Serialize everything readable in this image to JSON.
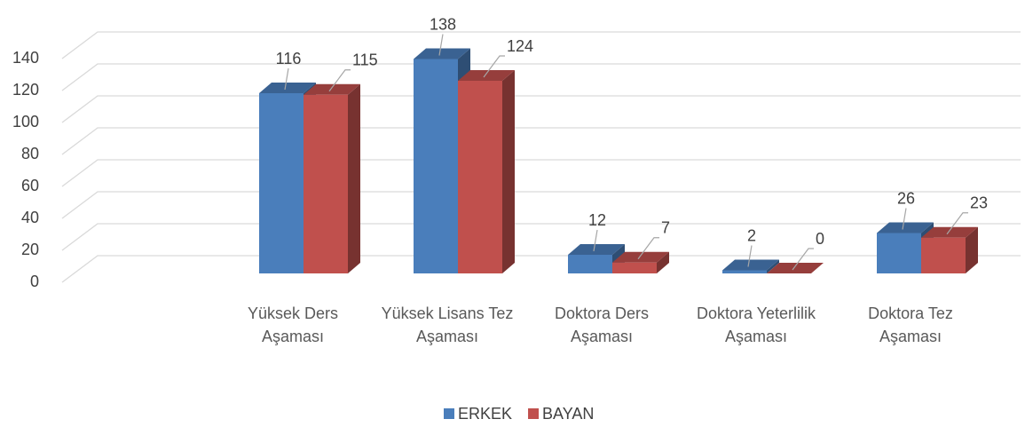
{
  "chart_data": {
    "type": "bar3d",
    "categories": [
      null,
      "Yüksek Ders Aşaması",
      "Yüksek Lisans Tez Aşaması",
      "Doktora Ders Aşaması",
      "Doktora Yeterlilik Aşaması",
      "Doktora Tez Aşaması"
    ],
    "series": [
      {
        "name": "ERKEK",
        "color": "#4a7ebb",
        "values": [
          null,
          116,
          138,
          12,
          2,
          26
        ]
      },
      {
        "name": "BAYAN",
        "color": "#c0504d",
        "values": [
          null,
          115,
          124,
          7,
          0,
          23
        ]
      }
    ],
    "ylim": [
      0,
      140
    ],
    "yticks": [
      0,
      20,
      40,
      60,
      80,
      100,
      120,
      140
    ],
    "grid": true,
    "legend": "bottom"
  }
}
